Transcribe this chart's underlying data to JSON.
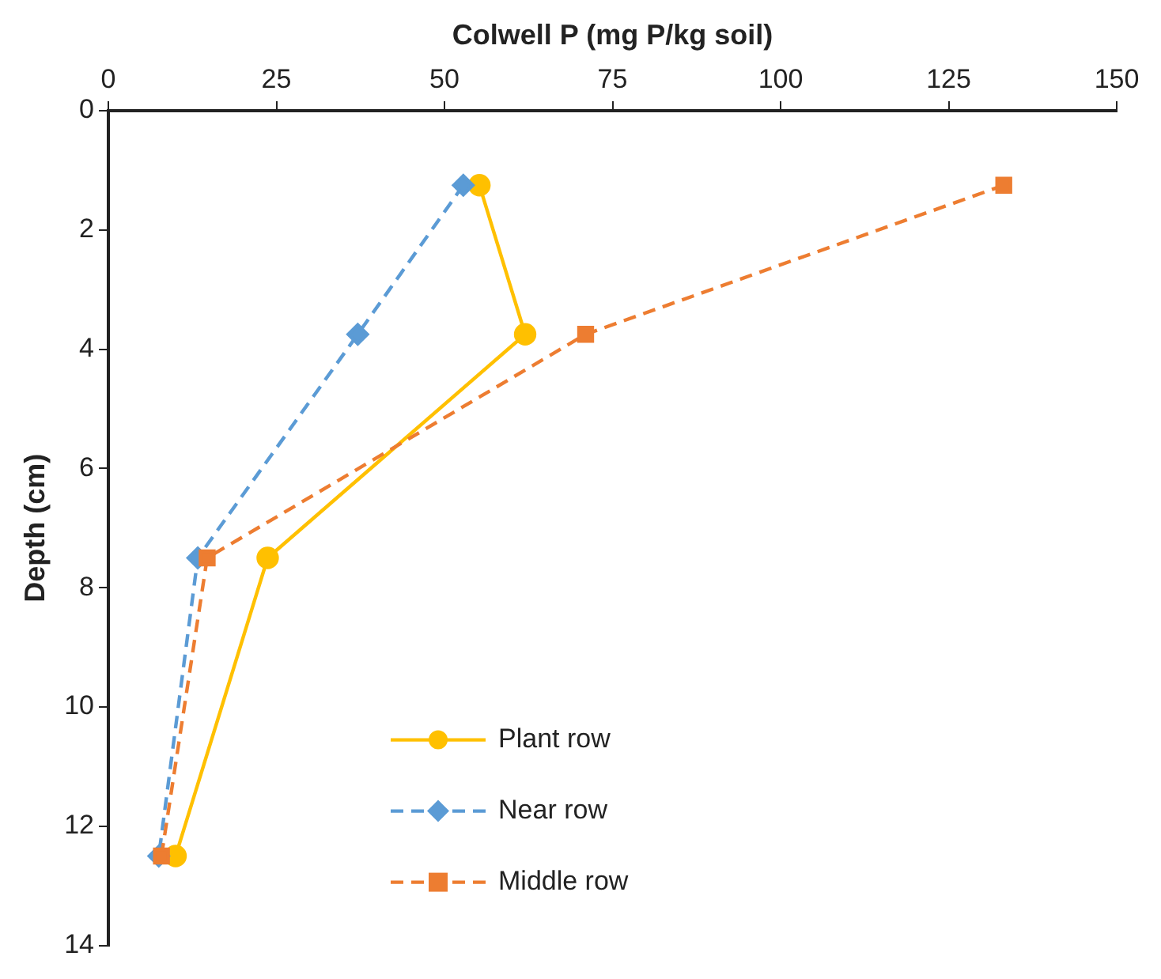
{
  "chart_data": {
    "type": "line",
    "xlabel": "Colwell P (mg P/kg soil)",
    "ylabel": "Depth (cm)",
    "xlim": [
      0,
      150
    ],
    "xticks": [
      0,
      25,
      50,
      75,
      100,
      125,
      150
    ],
    "ylim": [
      14,
      0
    ],
    "yticks": [
      0,
      2,
      4,
      6,
      8,
      10,
      12,
      14
    ],
    "grid": false,
    "legend": "bottom",
    "series": [
      {
        "name": "Plant row",
        "color": "#ffc000",
        "marker": "circle",
        "line_style": "solid",
        "x": [
          55.2,
          62.0,
          23.7,
          10.0
        ],
        "values": [
          1.25,
          3.75,
          7.5,
          12.5
        ]
      },
      {
        "name": "Near row",
        "color": "#5b9bd5",
        "marker": "diamond",
        "line_style": "dashed",
        "x": [
          52.8,
          37.1,
          13.3,
          7.5
        ],
        "values": [
          1.25,
          3.75,
          7.5,
          12.5
        ]
      },
      {
        "name": "Middle row",
        "color": "#ed7d31",
        "marker": "square",
        "line_style": "dashed",
        "x": [
          133.2,
          71.0,
          14.7,
          7.9
        ],
        "values": [
          1.25,
          3.75,
          7.5,
          12.5
        ]
      }
    ]
  }
}
